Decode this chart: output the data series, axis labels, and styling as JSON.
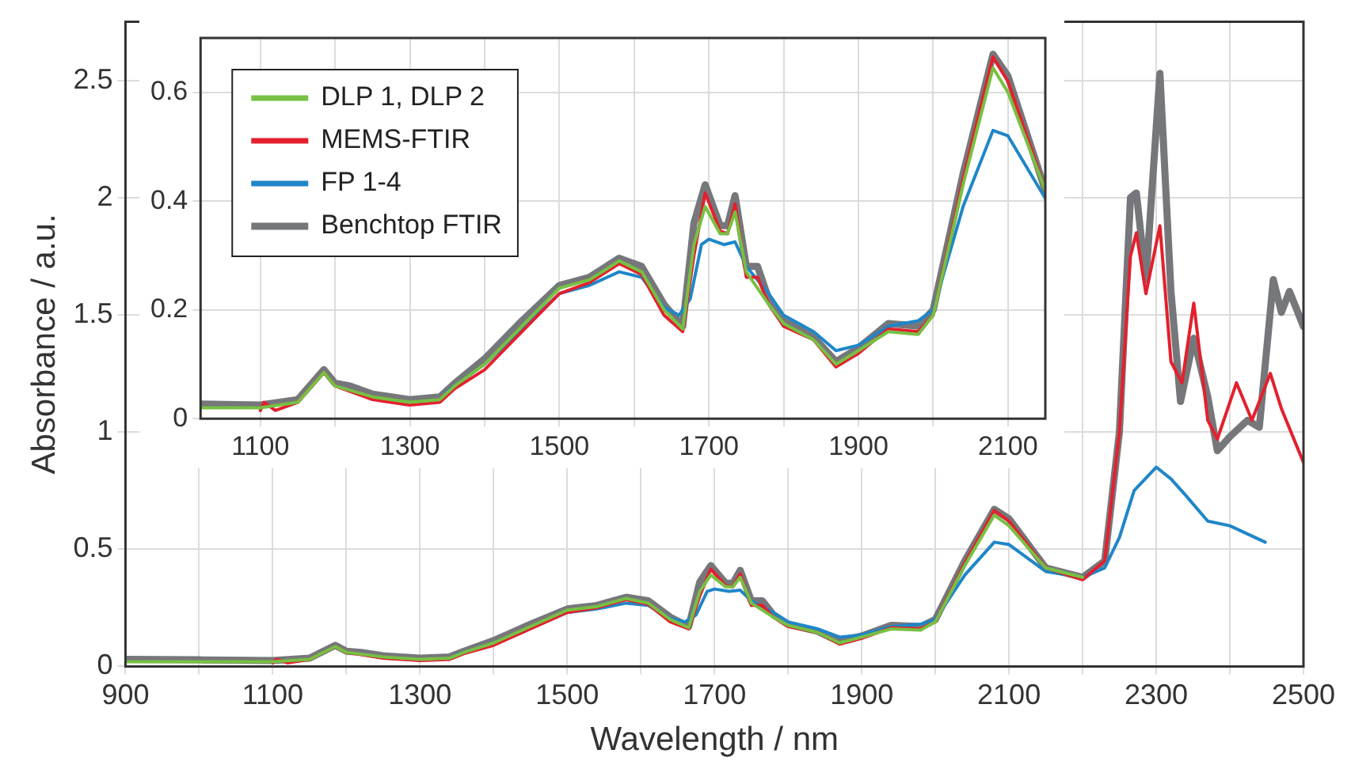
{
  "chart_data": [
    {
      "type": "line",
      "xlabel": "Wavelength / nm",
      "ylabel": "Absorbance / a.u.",
      "xlim": [
        900,
        2500
      ],
      "ylim": [
        0,
        2.75
      ],
      "xticks": [
        900,
        {
          "value": 1000,
          "label": null
        },
        1100,
        {
          "value": 1200,
          "label": null
        },
        1300,
        {
          "value": 1400,
          "label": null
        },
        1500,
        {
          "value": 1600,
          "label": null
        },
        1700,
        {
          "value": 1800,
          "label": null
        },
        1900,
        {
          "value": 2000,
          "label": null
        },
        2100,
        {
          "value": 2200,
          "label": null
        },
        2300,
        {
          "value": 2400,
          "label": null
        },
        2500
      ],
      "yticks": [
        0,
        0.5,
        1,
        1.5,
        2,
        2.5
      ],
      "grid": true,
      "legend": false,
      "marker": "none",
      "line_style": "solid",
      "series": [
        {
          "color": "#77c043",
          "x": [
            900,
            1000,
            1100,
            1150,
            1185,
            1200,
            1250,
            1300,
            1340,
            1360,
            1400,
            1450,
            1500,
            1540,
            1580,
            1610,
            1640,
            1665,
            1680,
            1695,
            1715,
            1725,
            1735,
            1750,
            1780,
            1800,
            1840,
            1870,
            1900,
            1940,
            1980,
            2000,
            2040,
            2080,
            2100,
            2150,
            2200
          ],
          "values": [
            0.02,
            0.02,
            0.02,
            0.03,
            0.085,
            0.06,
            0.04,
            0.03,
            0.035,
            0.06,
            0.1,
            0.17,
            0.24,
            0.255,
            0.29,
            0.27,
            0.2,
            0.165,
            0.32,
            0.39,
            0.34,
            0.34,
            0.38,
            0.27,
            0.21,
            0.175,
            0.145,
            0.1,
            0.125,
            0.16,
            0.155,
            0.19,
            0.43,
            0.645,
            0.6,
            0.42,
            0.38
          ]
        },
        {
          "color": "#e3202d",
          "x": [
            1100,
            1105,
            1120,
            1150,
            1185,
            1200,
            1250,
            1300,
            1340,
            1360,
            1400,
            1450,
            1500,
            1540,
            1580,
            1610,
            1640,
            1665,
            1680,
            1695,
            1715,
            1725,
            1735,
            1750,
            1765,
            1780,
            1800,
            1840,
            1870,
            1900,
            1940,
            1980,
            2000,
            2040,
            2080,
            2100,
            2150,
            2200,
            2230,
            2250,
            2265,
            2273,
            2286,
            2305,
            2320,
            2335,
            2351,
            2370,
            2383,
            2409,
            2430,
            2455,
            2470,
            2500
          ],
          "values": [
            0.015,
            0.03,
            0.015,
            0.03,
            0.085,
            0.06,
            0.035,
            0.025,
            0.03,
            0.055,
            0.09,
            0.16,
            0.23,
            0.25,
            0.285,
            0.265,
            0.19,
            0.16,
            0.3,
            0.415,
            0.345,
            0.34,
            0.395,
            0.26,
            0.26,
            0.21,
            0.17,
            0.145,
            0.095,
            0.12,
            0.165,
            0.16,
            0.19,
            0.44,
            0.665,
            0.62,
            0.42,
            0.37,
            0.45,
            1.0,
            1.75,
            1.85,
            1.59,
            1.88,
            1.3,
            1.21,
            1.55,
            1.05,
            0.97,
            1.21,
            1.05,
            1.25,
            1.1,
            0.87
          ]
        },
        {
          "color": "#1f86c8",
          "x": [
            1350,
            1400,
            1450,
            1500,
            1540,
            1580,
            1610,
            1640,
            1660,
            1675,
            1690,
            1700,
            1720,
            1735,
            1750,
            1780,
            1800,
            1840,
            1870,
            1900,
            1940,
            1980,
            2000,
            2040,
            2080,
            2100,
            2150,
            2200,
            2230,
            2250,
            2270,
            2300,
            2320,
            2340,
            2370,
            2400,
            2448
          ],
          "values": [
            0.05,
            0.1,
            0.165,
            0.23,
            0.245,
            0.27,
            0.26,
            0.205,
            0.19,
            0.22,
            0.32,
            0.33,
            0.32,
            0.325,
            0.28,
            0.23,
            0.19,
            0.16,
            0.125,
            0.135,
            0.17,
            0.18,
            0.2,
            0.39,
            0.53,
            0.52,
            0.405,
            0.38,
            0.42,
            0.55,
            0.75,
            0.85,
            0.8,
            0.73,
            0.62,
            0.6,
            0.53
          ]
        },
        {
          "color": "#76777b",
          "x": [
            900,
            1000,
            1100,
            1150,
            1185,
            1200,
            1220,
            1250,
            1300,
            1340,
            1360,
            1400,
            1450,
            1500,
            1540,
            1580,
            1610,
            1640,
            1665,
            1680,
            1695,
            1715,
            1725,
            1735,
            1750,
            1765,
            1780,
            1800,
            1840,
            1870,
            1900,
            1940,
            1980,
            2000,
            2040,
            2080,
            2100,
            2150,
            2200,
            2230,
            2250,
            2265,
            2273,
            2286,
            2305,
            2320,
            2333,
            2351,
            2370,
            2383,
            2400,
            2424,
            2440,
            2459,
            2470,
            2481,
            2500
          ],
          "values": [
            0.03,
            0.028,
            0.025,
            0.035,
            0.09,
            0.065,
            0.06,
            0.045,
            0.035,
            0.04,
            0.065,
            0.11,
            0.18,
            0.245,
            0.26,
            0.295,
            0.28,
            0.21,
            0.17,
            0.36,
            0.43,
            0.355,
            0.355,
            0.41,
            0.28,
            0.28,
            0.22,
            0.18,
            0.15,
            0.105,
            0.13,
            0.175,
            0.17,
            0.2,
            0.45,
            0.67,
            0.63,
            0.42,
            0.38,
            0.45,
            1.0,
            2.0,
            2.02,
            1.65,
            2.53,
            1.6,
            1.13,
            1.4,
            1.15,
            0.92,
            0.98,
            1.05,
            1.02,
            1.65,
            1.51,
            1.6,
            1.45
          ]
        }
      ]
    },
    {
      "type": "line",
      "xlim": [
        1020,
        2150
      ],
      "ylim": [
        0,
        0.7
      ],
      "xticks": [
        1100,
        {
          "value": 1200,
          "label": null
        },
        1300,
        {
          "value": 1400,
          "label": null
        },
        1500,
        {
          "value": 1600,
          "label": null
        },
        1700,
        {
          "value": 1800,
          "label": null
        },
        1900,
        {
          "value": 2000,
          "label": null
        },
        2100
      ],
      "yticks": [
        0,
        0.2,
        0.4,
        0.6
      ],
      "grid": true,
      "legend": "top left",
      "marker": "none",
      "line_style": "solid",
      "series": [
        {
          "name": "DLP 1, DLP 2",
          "color": "#77c043",
          "x": [
            1020,
            1100,
            1150,
            1185,
            1200,
            1250,
            1300,
            1340,
            1360,
            1400,
            1450,
            1500,
            1540,
            1580,
            1610,
            1640,
            1665,
            1680,
            1695,
            1715,
            1725,
            1735,
            1750,
            1780,
            1800,
            1840,
            1870,
            1900,
            1940,
            1980,
            2000,
            2040,
            2080,
            2100,
            2150
          ],
          "values": [
            0.02,
            0.02,
            0.03,
            0.085,
            0.06,
            0.04,
            0.03,
            0.035,
            0.06,
            0.1,
            0.17,
            0.24,
            0.255,
            0.29,
            0.27,
            0.2,
            0.165,
            0.32,
            0.39,
            0.34,
            0.34,
            0.38,
            0.27,
            0.21,
            0.175,
            0.145,
            0.1,
            0.125,
            0.16,
            0.155,
            0.19,
            0.43,
            0.645,
            0.6,
            0.42
          ]
        },
        {
          "name": "MEMS-FTIR",
          "color": "#e3202d",
          "x": [
            1100,
            1105,
            1120,
            1150,
            1185,
            1200,
            1250,
            1300,
            1340,
            1360,
            1400,
            1450,
            1500,
            1540,
            1580,
            1610,
            1640,
            1665,
            1680,
            1695,
            1715,
            1725,
            1735,
            1750,
            1765,
            1780,
            1800,
            1840,
            1870,
            1900,
            1940,
            1980,
            2000,
            2040,
            2080,
            2100,
            2150
          ],
          "values": [
            0.015,
            0.03,
            0.015,
            0.03,
            0.085,
            0.06,
            0.035,
            0.025,
            0.03,
            0.055,
            0.09,
            0.16,
            0.23,
            0.25,
            0.285,
            0.265,
            0.19,
            0.16,
            0.3,
            0.415,
            0.345,
            0.34,
            0.395,
            0.26,
            0.26,
            0.21,
            0.17,
            0.145,
            0.095,
            0.12,
            0.165,
            0.16,
            0.19,
            0.44,
            0.665,
            0.62,
            0.42
          ]
        },
        {
          "name": "FP 1-4",
          "color": "#1f86c8",
          "x": [
            1350,
            1400,
            1450,
            1500,
            1540,
            1580,
            1610,
            1640,
            1660,
            1675,
            1690,
            1700,
            1720,
            1735,
            1750,
            1780,
            1800,
            1840,
            1870,
            1900,
            1940,
            1980,
            2000,
            2040,
            2080,
            2100,
            2150
          ],
          "values": [
            0.05,
            0.1,
            0.165,
            0.23,
            0.245,
            0.27,
            0.26,
            0.205,
            0.19,
            0.22,
            0.32,
            0.33,
            0.32,
            0.325,
            0.28,
            0.23,
            0.19,
            0.16,
            0.125,
            0.135,
            0.17,
            0.18,
            0.2,
            0.39,
            0.53,
            0.52,
            0.405
          ]
        },
        {
          "name": "Benchtop FTIR",
          "color": "#76777b",
          "x": [
            1020,
            1100,
            1150,
            1185,
            1200,
            1220,
            1250,
            1300,
            1340,
            1360,
            1400,
            1450,
            1500,
            1540,
            1580,
            1610,
            1640,
            1665,
            1680,
            1695,
            1715,
            1725,
            1735,
            1750,
            1765,
            1780,
            1800,
            1840,
            1870,
            1900,
            1940,
            1980,
            2000,
            2040,
            2080,
            2100,
            2150
          ],
          "values": [
            0.027,
            0.025,
            0.035,
            0.09,
            0.065,
            0.06,
            0.045,
            0.035,
            0.04,
            0.065,
            0.11,
            0.18,
            0.245,
            0.26,
            0.295,
            0.28,
            0.21,
            0.17,
            0.36,
            0.43,
            0.355,
            0.355,
            0.41,
            0.28,
            0.28,
            0.22,
            0.18,
            0.15,
            0.105,
            0.13,
            0.175,
            0.17,
            0.2,
            0.45,
            0.67,
            0.63,
            0.42
          ]
        }
      ]
    }
  ]
}
